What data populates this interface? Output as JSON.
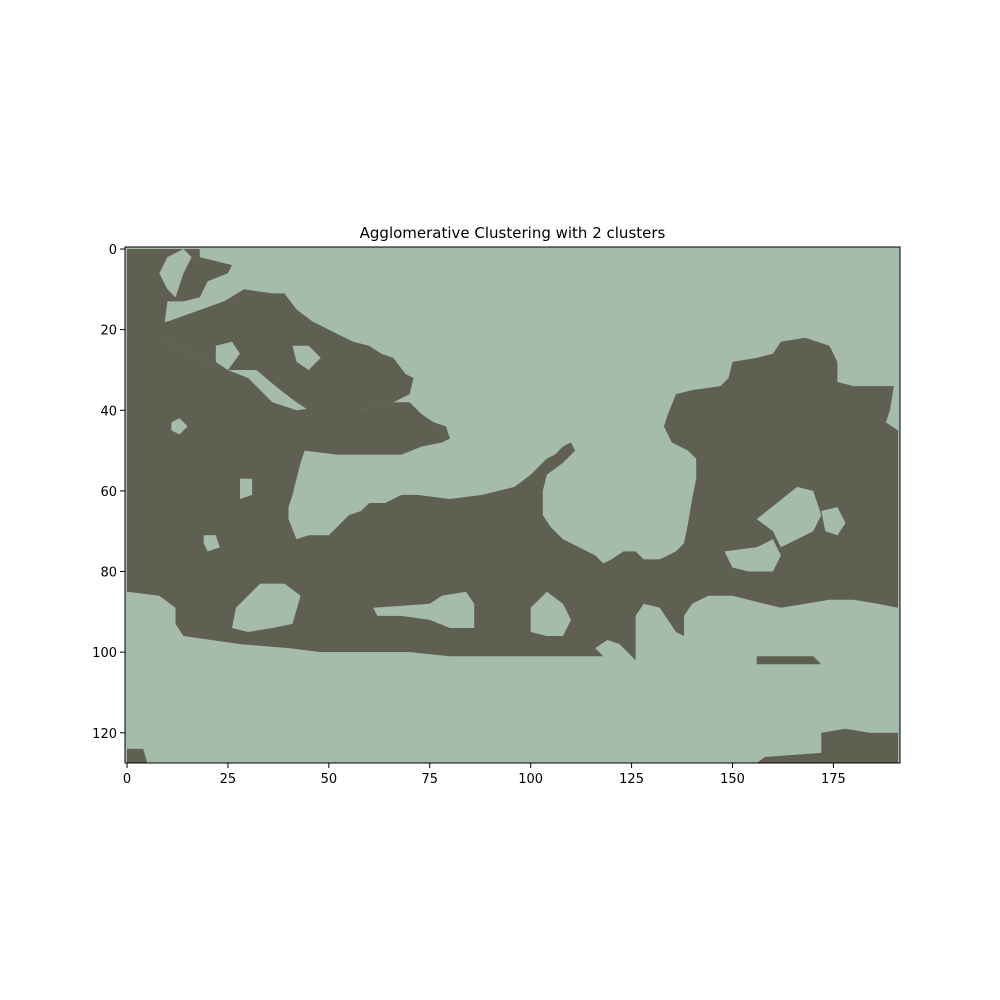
{
  "colors": {
    "cluster_0": "#a5bbac",
    "cluster_1": "#5f6052",
    "axes": "#000000",
    "background": "#ffffff"
  },
  "chart_data": {
    "type": "heatmap",
    "title": "Agglomerative Clustering with 2 clusters",
    "xlabel": "",
    "ylabel": "",
    "image_width": 192,
    "image_height": 128,
    "xlim": [
      -0.5,
      191.5
    ],
    "ylim": [
      127.5,
      -0.5
    ],
    "xticks": [
      0,
      25,
      50,
      75,
      100,
      125,
      150,
      175
    ],
    "yticks": [
      0,
      20,
      40,
      60,
      80,
      100,
      120
    ],
    "grid": false,
    "legend": "none",
    "cluster_labels": [
      0,
      1
    ],
    "cluster_colors": [
      "#a5bbac",
      "#5f6052"
    ],
    "cluster_1_regions": [
      [
        [
          0,
          0
        ],
        [
          18,
          0
        ],
        [
          18,
          2
        ],
        [
          26,
          4
        ],
        [
          25,
          6
        ],
        [
          20,
          8
        ],
        [
          18,
          12
        ],
        [
          14,
          13
        ],
        [
          10,
          13
        ],
        [
          9,
          21
        ],
        [
          10,
          27
        ],
        [
          4,
          29
        ],
        [
          0,
          31
        ]
      ],
      [
        [
          0,
          20
        ],
        [
          10,
          18
        ],
        [
          24,
          13
        ],
        [
          29,
          10
        ],
        [
          36,
          11
        ],
        [
          39,
          11
        ],
        [
          42,
          15
        ],
        [
          46,
          18
        ],
        [
          52,
          21
        ],
        [
          56,
          23
        ],
        [
          60,
          24
        ],
        [
          63,
          26
        ],
        [
          66,
          27
        ],
        [
          69,
          31
        ],
        [
          71,
          32
        ],
        [
          70,
          36
        ],
        [
          66,
          38
        ],
        [
          62,
          39
        ],
        [
          58,
          40
        ],
        [
          52,
          40
        ],
        [
          50,
          39
        ],
        [
          45,
          40
        ],
        [
          42,
          38
        ],
        [
          38,
          35
        ],
        [
          32,
          30
        ],
        [
          25,
          30
        ],
        [
          20,
          28
        ],
        [
          14,
          25
        ],
        [
          8,
          22
        ],
        [
          0,
          23
        ]
      ],
      [
        [
          0,
          23
        ],
        [
          8,
          22
        ],
        [
          14,
          25
        ],
        [
          20,
          28
        ],
        [
          25,
          30
        ],
        [
          30,
          32
        ],
        [
          36,
          38
        ],
        [
          42,
          40
        ],
        [
          50,
          39
        ],
        [
          58,
          40
        ],
        [
          66,
          38
        ],
        [
          70,
          38
        ],
        [
          73,
          41
        ],
        [
          76,
          43
        ],
        [
          79,
          44
        ],
        [
          80,
          47
        ],
        [
          78,
          48
        ],
        [
          73,
          49
        ],
        [
          68,
          51
        ],
        [
          60,
          51
        ],
        [
          52,
          51
        ],
        [
          44,
          50
        ],
        [
          43,
          53
        ],
        [
          42,
          57
        ],
        [
          41,
          61
        ],
        [
          40,
          64
        ],
        [
          40,
          67
        ],
        [
          42,
          72
        ],
        [
          45,
          71
        ],
        [
          50,
          71
        ],
        [
          53,
          68
        ],
        [
          55,
          66
        ],
        [
          58,
          65
        ],
        [
          60,
          63
        ],
        [
          64,
          63
        ],
        [
          68,
          61
        ],
        [
          72,
          61
        ],
        [
          80,
          62
        ],
        [
          88,
          61
        ],
        [
          92,
          60
        ],
        [
          96,
          59
        ],
        [
          100,
          56
        ],
        [
          102,
          54
        ],
        [
          104,
          52
        ],
        [
          106,
          51
        ],
        [
          108,
          49
        ],
        [
          110,
          48
        ],
        [
          111,
          50
        ],
        [
          108,
          53
        ],
        [
          104,
          56
        ],
        [
          103,
          60
        ],
        [
          103,
          66
        ],
        [
          105,
          69
        ],
        [
          108,
          72
        ],
        [
          112,
          74
        ],
        [
          116,
          76
        ],
        [
          118,
          78
        ],
        [
          120,
          77
        ],
        [
          123,
          75
        ],
        [
          126,
          75
        ],
        [
          128,
          77
        ],
        [
          132,
          77
        ],
        [
          136,
          75
        ],
        [
          138,
          73
        ],
        [
          139,
          68
        ],
        [
          140,
          62
        ],
        [
          141,
          57
        ],
        [
          141,
          52
        ],
        [
          139,
          50
        ],
        [
          135,
          48
        ],
        [
          133,
          44
        ],
        [
          134,
          41
        ],
        [
          136,
          36
        ],
        [
          140,
          35
        ],
        [
          147,
          34
        ],
        [
          149,
          32
        ],
        [
          150,
          28
        ],
        [
          156,
          27
        ],
        [
          160,
          26
        ],
        [
          162,
          23
        ],
        [
          168,
          22
        ],
        [
          174,
          24
        ],
        [
          176,
          28
        ],
        [
          176,
          33
        ],
        [
          180,
          34
        ],
        [
          190,
          34
        ],
        [
          189,
          40
        ],
        [
          188,
          43
        ],
        [
          191,
          45
        ],
        [
          191,
          89
        ],
        [
          186,
          88
        ],
        [
          180,
          87
        ],
        [
          174,
          87
        ],
        [
          168,
          88
        ],
        [
          162,
          89
        ],
        [
          158,
          88
        ],
        [
          150,
          86
        ],
        [
          144,
          86
        ],
        [
          140,
          88
        ],
        [
          138,
          91
        ],
        [
          138,
          96
        ],
        [
          136,
          95
        ],
        [
          134,
          92
        ],
        [
          132,
          89
        ],
        [
          128,
          88
        ],
        [
          126,
          91
        ],
        [
          126,
          96
        ],
        [
          126,
          102
        ],
        [
          122,
          98
        ],
        [
          119,
          97
        ],
        [
          116,
          99
        ],
        [
          118,
          101
        ],
        [
          110,
          101
        ],
        [
          100,
          101
        ],
        [
          90,
          101
        ],
        [
          80,
          101
        ],
        [
          70,
          100
        ],
        [
          60,
          100
        ],
        [
          48,
          100
        ],
        [
          40,
          99
        ],
        [
          28,
          98
        ],
        [
          14,
          96
        ],
        [
          12,
          93
        ],
        [
          12,
          89
        ],
        [
          8,
          86
        ],
        [
          0,
          85
        ]
      ],
      [
        [
          156,
          101
        ],
        [
          170,
          101
        ],
        [
          172,
          103
        ],
        [
          160,
          103
        ],
        [
          156,
          103
        ]
      ],
      [
        [
          172,
          120
        ],
        [
          178,
          119
        ],
        [
          184,
          120
        ],
        [
          191,
          120
        ],
        [
          191,
          127.5
        ],
        [
          156,
          127.5
        ],
        [
          158,
          126
        ],
        [
          172,
          125
        ]
      ],
      [
        [
          0,
          124
        ],
        [
          4,
          124
        ],
        [
          5,
          127.5
        ],
        [
          0,
          127.5
        ]
      ]
    ],
    "cluster_0_islands": [
      [
        [
          10,
          2
        ],
        [
          14,
          0
        ],
        [
          16,
          2
        ],
        [
          14,
          6
        ],
        [
          12,
          12
        ],
        [
          10,
          10
        ],
        [
          8,
          6
        ]
      ],
      [
        [
          11,
          43
        ],
        [
          13,
          42
        ],
        [
          15,
          44
        ],
        [
          13,
          46
        ],
        [
          11,
          45
        ]
      ],
      [
        [
          22,
          24
        ],
        [
          26,
          23
        ],
        [
          28,
          26
        ],
        [
          25,
          30
        ],
        [
          22,
          28
        ]
      ],
      [
        [
          41,
          24
        ],
        [
          45,
          24
        ],
        [
          48,
          27
        ],
        [
          45,
          30
        ],
        [
          42,
          28
        ]
      ],
      [
        [
          28,
          57
        ],
        [
          31,
          57
        ],
        [
          31,
          61
        ],
        [
          28,
          62
        ]
      ],
      [
        [
          19,
          71
        ],
        [
          22,
          71
        ],
        [
          23,
          74
        ],
        [
          20,
          75
        ],
        [
          19,
          73
        ]
      ],
      [
        [
          27,
          89
        ],
        [
          33,
          83
        ],
        [
          39,
          83
        ],
        [
          43,
          86
        ],
        [
          41,
          93
        ],
        [
          36,
          94
        ],
        [
          30,
          95
        ],
        [
          26,
          94
        ]
      ],
      [
        [
          61,
          89
        ],
        [
          75,
          88
        ],
        [
          78,
          86
        ],
        [
          84,
          85
        ],
        [
          86,
          88
        ],
        [
          86,
          94
        ],
        [
          80,
          94
        ],
        [
          75,
          92
        ],
        [
          68,
          91
        ],
        [
          62,
          91
        ]
      ],
      [
        [
          100,
          89
        ],
        [
          104,
          85
        ],
        [
          108,
          88
        ],
        [
          110,
          92
        ],
        [
          108,
          96
        ],
        [
          104,
          96
        ],
        [
          100,
          95
        ]
      ],
      [
        [
          126,
          46
        ],
        [
          129,
          46
        ],
        [
          131,
          48
        ],
        [
          133,
          52
        ],
        [
          132,
          55
        ],
        [
          129,
          53
        ],
        [
          127,
          50
        ]
      ],
      [
        [
          156,
          67
        ],
        [
          166,
          59
        ],
        [
          170,
          60
        ],
        [
          172,
          66
        ],
        [
          170,
          70
        ],
        [
          166,
          72
        ],
        [
          162,
          74
        ],
        [
          160,
          70
        ]
      ],
      [
        [
          148,
          75
        ],
        [
          156,
          74
        ],
        [
          160,
          72
        ],
        [
          162,
          76
        ],
        [
          160,
          80
        ],
        [
          154,
          80
        ],
        [
          150,
          79
        ]
      ],
      [
        [
          172,
          65
        ],
        [
          176,
          64
        ],
        [
          178,
          68
        ],
        [
          176,
          71
        ],
        [
          173,
          70
        ]
      ]
    ]
  }
}
